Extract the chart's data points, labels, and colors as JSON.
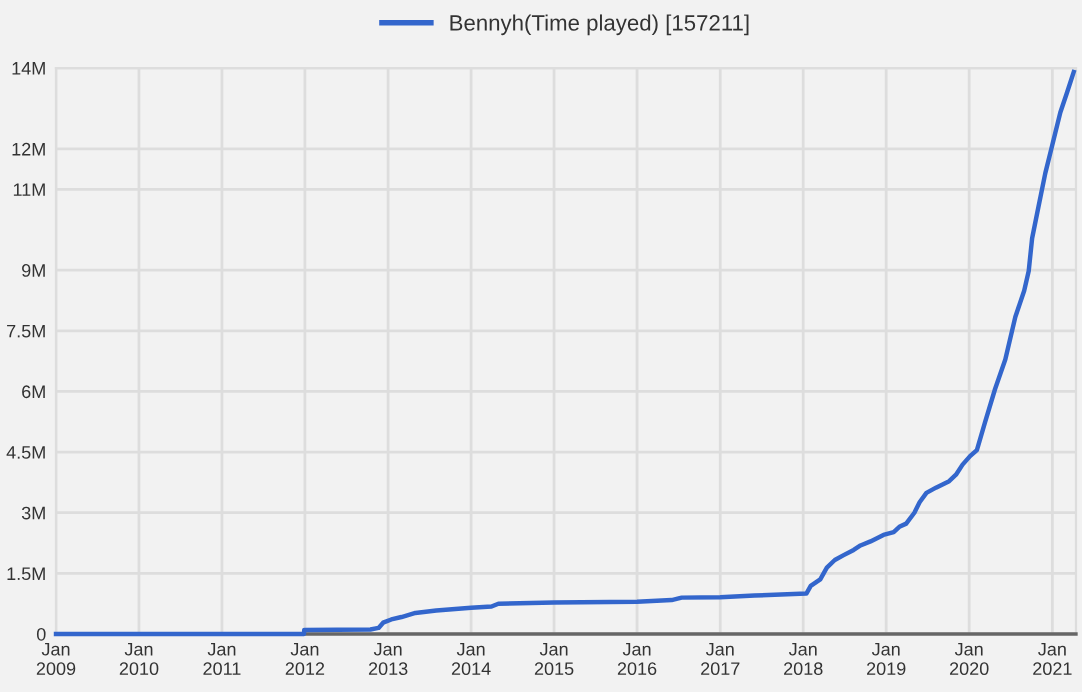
{
  "chart_data": {
    "type": "line",
    "legend": "top",
    "grid": true,
    "line_style": "solid",
    "marker": "none",
    "xlim": [
      "2009-01-01",
      "2021-04-15"
    ],
    "xticks": [
      {
        "value": "2009-01-01",
        "label": "Jan\n2009"
      },
      {
        "value": "2010-01-01",
        "label": "Jan\n2010"
      },
      {
        "value": "2011-01-01",
        "label": "Jan\n2011"
      },
      {
        "value": "2012-01-01",
        "label": "Jan\n2012"
      },
      {
        "value": "2013-01-01",
        "label": "Jan\n2013"
      },
      {
        "value": "2014-01-01",
        "label": "Jan\n2014"
      },
      {
        "value": "2015-01-01",
        "label": "Jan\n2015"
      },
      {
        "value": "2016-01-01",
        "label": "Jan\n2016"
      },
      {
        "value": "2017-01-01",
        "label": "Jan\n2017"
      },
      {
        "value": "2018-01-01",
        "label": "Jan\n2018"
      },
      {
        "value": "2019-01-01",
        "label": "Jan\n2019"
      },
      {
        "value": "2020-01-01",
        "label": "Jan\n2020"
      },
      {
        "value": "2021-01-01",
        "label": "Jan\n2021"
      }
    ],
    "ylim": [
      0,
      14000000
    ],
    "yticks": [
      {
        "value": 0,
        "label": "0"
      },
      {
        "value": 1500000,
        "label": "1.5M"
      },
      {
        "value": 3000000,
        "label": "3M"
      },
      {
        "value": 4500000,
        "label": "4.5M"
      },
      {
        "value": 6000000,
        "label": "6M"
      },
      {
        "value": 7500000,
        "label": "7.5M"
      },
      {
        "value": 9000000,
        "label": "9M"
      },
      {
        "value": 11000000,
        "label": "11M"
      },
      {
        "value": 12000000,
        "label": "12M"
      },
      {
        "value": 14000000,
        "label": "14M"
      }
    ],
    "series": [
      {
        "name": "Bennyh(Time played) [157211]",
        "color": "#3366cc",
        "x": [
          "2009-01-01",
          "2011-12-28",
          "2011-12-29",
          "2012-10-15",
          "2012-11-20",
          "2012-12-10",
          "2013-01-15",
          "2013-03-01",
          "2013-05-01",
          "2013-08-01",
          "2014-01-01",
          "2014-04-01",
          "2014-05-01",
          "2015-01-01",
          "2016-01-01",
          "2016-06-01",
          "2016-07-15",
          "2017-01-01",
          "2017-06-01",
          "2018-01-15",
          "2018-02-03",
          "2018-03-17",
          "2018-04-15",
          "2018-05-20",
          "2018-06-28",
          "2018-08-11",
          "2018-09-10",
          "2018-10-24",
          "2018-12-20",
          "2019-02-03",
          "2019-02-28",
          "2019-03-30",
          "2019-05-05",
          "2019-05-28",
          "2019-06-27",
          "2019-08-08",
          "2019-10-05",
          "2019-11-04",
          "2019-12-03",
          "2020-01-05",
          "2020-02-04",
          "2020-03-11",
          "2020-04-24",
          "2020-06-08",
          "2020-07-22",
          "2020-08-30",
          "2020-09-19",
          "2020-10-04",
          "2020-11-02",
          "2020-12-01",
          "2021-01-01",
          "2021-02-05",
          "2021-03-07",
          "2021-04-05"
        ],
        "values": [
          0,
          0,
          100000,
          110000,
          150000,
          280000,
          360000,
          420000,
          520000,
          580000,
          650000,
          680000,
          750000,
          780000,
          800000,
          840000,
          900000,
          910000,
          950000,
          1000000,
          1190000,
          1350000,
          1640000,
          1830000,
          1950000,
          2080000,
          2190000,
          2290000,
          2450000,
          2520000,
          2650000,
          2730000,
          3000000,
          3260000,
          3490000,
          3620000,
          3780000,
          3940000,
          4190000,
          4400000,
          4550000,
          5240000,
          6060000,
          6790000,
          7840000,
          8490000,
          8980000,
          9790000,
          10600000,
          11400000,
          12100000,
          12900000,
          13400000,
          13900000
        ]
      }
    ]
  }
}
